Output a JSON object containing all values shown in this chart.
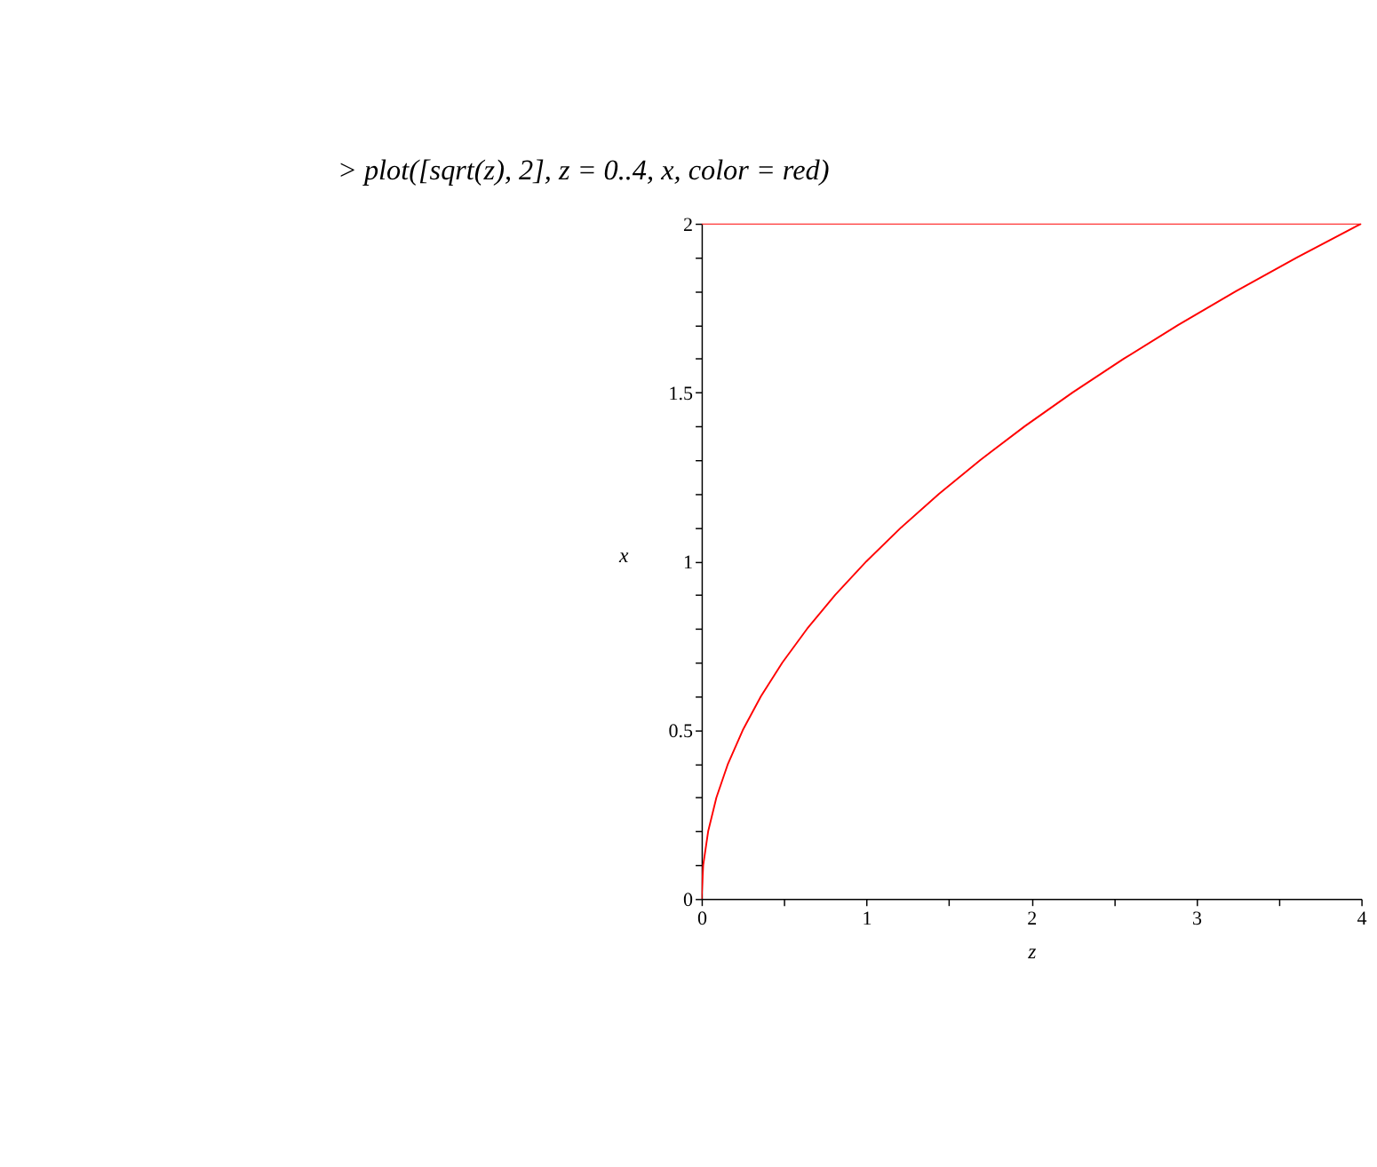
{
  "chart_data": {
    "type": "line",
    "title": "> plot([sqrt(z), 2], z = 0..4, x, color = red)",
    "xlabel": "z",
    "ylabel": "x",
    "xlim": [
      0,
      4
    ],
    "xticks": [
      0,
      {
        "value": 0.5,
        "label": null
      },
      1,
      {
        "value": 1.5,
        "label": null
      },
      2,
      {
        "value": 2.5,
        "label": null
      },
      3,
      {
        "value": 3.5,
        "label": null
      },
      4
    ],
    "ylim": [
      0,
      2
    ],
    "yticks": [
      0,
      {
        "value": 0.1,
        "label": null
      },
      {
        "value": 0.2,
        "label": null
      },
      {
        "value": 0.3,
        "label": null
      },
      {
        "value": 0.4,
        "label": null
      },
      0.5,
      {
        "value": 0.6,
        "label": null
      },
      {
        "value": 0.7,
        "label": null
      },
      {
        "value": 0.8,
        "label": null
      },
      {
        "value": 0.9,
        "label": null
      },
      1,
      {
        "value": 1.1,
        "label": null
      },
      {
        "value": 1.2,
        "label": null
      },
      {
        "value": 1.3,
        "label": null
      },
      {
        "value": 1.4,
        "label": null
      },
      1.5,
      {
        "value": 1.6,
        "label": null
      },
      {
        "value": 1.7,
        "label": null
      },
      {
        "value": 1.8,
        "label": null
      },
      {
        "value": 1.9,
        "label": null
      },
      2
    ],
    "grid": false,
    "legend": false,
    "marker": "none",
    "line_style": "solid",
    "series": [
      {
        "color": "#ff0000",
        "x": [
          0,
          0.01,
          0.04,
          0.09,
          0.16,
          0.25,
          0.36,
          0.49,
          0.64,
          0.81,
          1,
          1.21,
          1.44,
          1.69,
          1.96,
          2.25,
          2.56,
          2.89,
          3.24,
          3.61,
          4
        ],
        "values": [
          0,
          0.1,
          0.2,
          0.3,
          0.4,
          0.5,
          0.6,
          0.7,
          0.8,
          0.9,
          1,
          1.1,
          1.2,
          1.3,
          1.4,
          1.5,
          1.6,
          1.7,
          1.8,
          1.9,
          2
        ]
      },
      {
        "color": "#ff0000",
        "x": [
          0,
          4
        ],
        "values": [
          2,
          2
        ]
      }
    ]
  }
}
